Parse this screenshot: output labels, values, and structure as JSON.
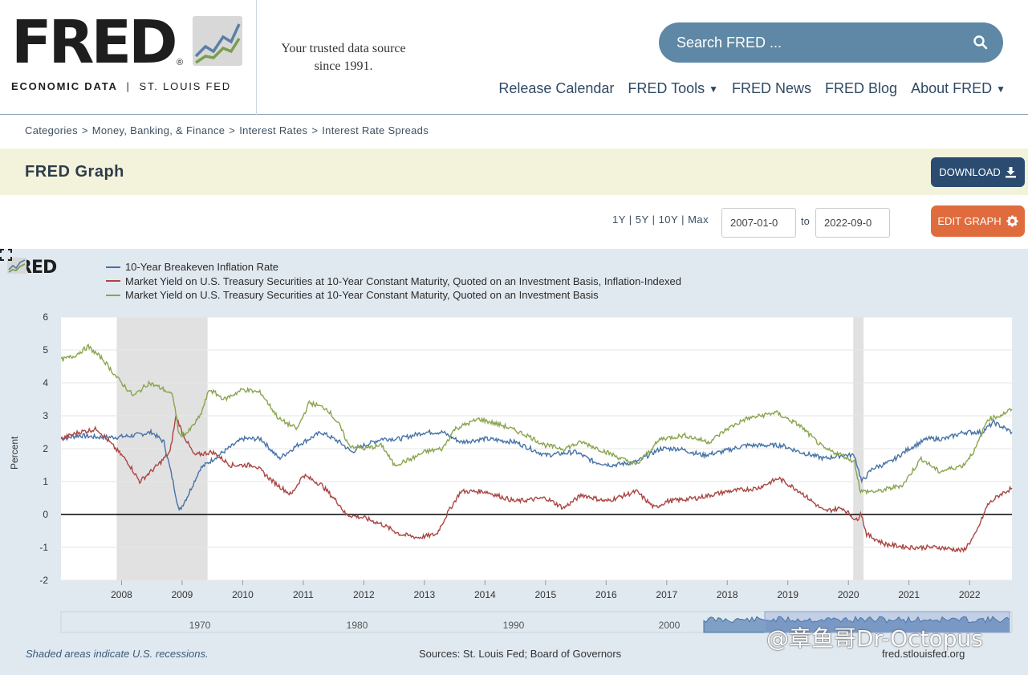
{
  "header": {
    "logo_text": "FRED",
    "logo_sub_bold": "ECONOMIC DATA",
    "logo_sub_sep": "|",
    "logo_sub_rest": "ST. LOUIS FED",
    "tagline_line1": "Your trusted data source",
    "tagline_line2": "since 1991.",
    "search_placeholder": "Search FRED ...",
    "nav": [
      {
        "label": "Release Calendar",
        "dropdown": false
      },
      {
        "label": "FRED Tools",
        "dropdown": true
      },
      {
        "label": "FRED News",
        "dropdown": false
      },
      {
        "label": "FRED Blog",
        "dropdown": false
      },
      {
        "label": "About FRED",
        "dropdown": true
      }
    ]
  },
  "breadcrumb": [
    "Categories",
    "Money, Banking, & Finance",
    "Interest Rates",
    "Interest Rate Spreads"
  ],
  "titlebar": {
    "title": "FRED Graph",
    "download_label": "DOWNLOAD"
  },
  "controls": {
    "ranges": [
      "1Y",
      "5Y",
      "10Y",
      "Max"
    ],
    "start_date": "2007-01-0",
    "to_label": "to",
    "end_date": "2022-09-0",
    "edit_label": "EDIT GRAPH"
  },
  "graph": {
    "logo_text": "FRED",
    "footnote": "Shaded areas indicate U.S. recessions.",
    "sources": "Sources: St. Louis Fed; Board of Governors",
    "site": "fred.stlouisfed.org",
    "watermark": "@章鱼哥Dr-Octopus",
    "colors": {
      "blue": "#4572a7",
      "red": "#aa4643",
      "green": "#89a54e",
      "recession": "#e1e1e1"
    }
  },
  "chart_data": {
    "type": "line",
    "title": "",
    "ylabel": "Percent",
    "xlabel": "",
    "ylim": [
      -2,
      6
    ],
    "xlim": [
      2007.0,
      2022.7
    ],
    "yticks": [
      -2,
      -1,
      0,
      1,
      2,
      3,
      4,
      5,
      6
    ],
    "xticks": [
      2008,
      2009,
      2010,
      2011,
      2012,
      2013,
      2014,
      2015,
      2016,
      2017,
      2018,
      2019,
      2020,
      2021,
      2022
    ],
    "recessions": [
      [
        2007.92,
        2009.42
      ],
      [
        2020.08,
        2020.25
      ]
    ],
    "zero_line": true,
    "grid": true,
    "series": [
      {
        "name": "10-Year Breakeven Inflation Rate",
        "color": "#4572a7",
        "x": [
          2007.0,
          2007.3,
          2007.6,
          2007.9,
          2008.2,
          2008.5,
          2008.7,
          2008.85,
          2008.95,
          2009.1,
          2009.3,
          2009.6,
          2010.0,
          2010.3,
          2010.6,
          2010.9,
          2011.3,
          2011.6,
          2011.8,
          2012.0,
          2012.3,
          2012.6,
          2013.0,
          2013.3,
          2013.6,
          2014.0,
          2014.5,
          2015.0,
          2015.5,
          2015.8,
          2016.1,
          2016.5,
          2016.9,
          2017.2,
          2017.6,
          2017.9,
          2018.3,
          2018.6,
          2018.9,
          2019.2,
          2019.6,
          2019.9,
          2020.1,
          2020.22,
          2020.4,
          2020.7,
          2021.0,
          2021.3,
          2021.6,
          2021.9,
          2022.2,
          2022.4,
          2022.7
        ],
        "y": [
          2.3,
          2.4,
          2.35,
          2.35,
          2.4,
          2.5,
          2.2,
          1.0,
          0.1,
          0.6,
          1.4,
          1.8,
          2.3,
          2.3,
          1.7,
          2.1,
          2.5,
          2.2,
          1.9,
          2.1,
          2.3,
          2.3,
          2.5,
          2.5,
          2.2,
          2.3,
          2.2,
          1.8,
          1.9,
          1.6,
          1.5,
          1.6,
          2.0,
          2.0,
          1.8,
          1.9,
          2.1,
          2.1,
          2.1,
          1.9,
          1.7,
          1.8,
          1.8,
          1.0,
          1.4,
          1.6,
          2.0,
          2.3,
          2.3,
          2.5,
          2.5,
          2.8,
          2.5
        ]
      },
      {
        "name": "Market Yield on U.S. Treasury Securities at 10-Year Constant Maturity, Quoted on an Investment Basis, Inflation-Indexed",
        "color": "#aa4643",
        "x": [
          2007.0,
          2007.3,
          2007.6,
          2007.9,
          2008.1,
          2008.3,
          2008.6,
          2008.8,
          2008.9,
          2009.0,
          2009.2,
          2009.5,
          2009.8,
          2010.2,
          2010.5,
          2010.8,
          2011.0,
          2011.3,
          2011.6,
          2011.7,
          2012.0,
          2012.3,
          2012.6,
          2012.9,
          2013.2,
          2013.4,
          2013.6,
          2014.0,
          2014.5,
          2015.0,
          2015.3,
          2015.6,
          2016.0,
          2016.5,
          2016.8,
          2017.0,
          2017.5,
          2018.0,
          2018.5,
          2018.85,
          2019.2,
          2019.6,
          2019.9,
          2020.15,
          2020.2,
          2020.3,
          2020.6,
          2021.0,
          2021.5,
          2021.9,
          2022.1,
          2022.3,
          2022.5,
          2022.7
        ],
        "y": [
          2.3,
          2.5,
          2.6,
          2.0,
          1.6,
          1.0,
          1.5,
          1.9,
          3.0,
          2.5,
          1.8,
          1.9,
          1.5,
          1.5,
          1.0,
          0.6,
          1.2,
          0.9,
          0.3,
          0.0,
          -0.1,
          -0.3,
          -0.6,
          -0.7,
          -0.6,
          0.1,
          0.7,
          0.7,
          0.4,
          0.5,
          0.2,
          0.6,
          0.4,
          0.7,
          0.2,
          0.4,
          0.5,
          0.7,
          0.8,
          1.1,
          0.7,
          0.1,
          0.2,
          -0.2,
          0.1,
          -0.6,
          -0.9,
          -1.0,
          -1.0,
          -1.1,
          -0.6,
          0.3,
          0.6,
          0.8
        ]
      },
      {
        "name": "Market Yield on U.S. Treasury Securities at 10-Year Constant Maturity, Quoted on an Investment Basis",
        "color": "#89a54e",
        "x": [
          2007.0,
          2007.2,
          2007.45,
          2007.7,
          2007.95,
          2008.2,
          2008.45,
          2008.7,
          2008.85,
          2008.95,
          2009.1,
          2009.3,
          2009.45,
          2009.7,
          2010.0,
          2010.3,
          2010.6,
          2010.9,
          2011.1,
          2011.4,
          2011.6,
          2011.75,
          2012.0,
          2012.3,
          2012.5,
          2012.8,
          2013.0,
          2013.3,
          2013.5,
          2013.9,
          2014.3,
          2014.7,
          2015.0,
          2015.3,
          2015.6,
          2016.0,
          2016.5,
          2016.9,
          2017.3,
          2017.7,
          2018.0,
          2018.3,
          2018.8,
          2019.2,
          2019.6,
          2019.9,
          2020.1,
          2020.2,
          2020.5,
          2020.9,
          2021.2,
          2021.5,
          2021.9,
          2022.1,
          2022.3,
          2022.5,
          2022.7
        ],
        "y": [
          4.7,
          4.8,
          5.1,
          4.7,
          4.1,
          3.6,
          4.0,
          3.8,
          3.6,
          2.4,
          2.5,
          3.0,
          3.8,
          3.5,
          3.8,
          3.7,
          2.9,
          2.6,
          3.4,
          3.2,
          2.7,
          2.1,
          2.0,
          2.1,
          1.5,
          1.7,
          1.9,
          2.0,
          2.6,
          2.9,
          2.7,
          2.4,
          2.1,
          2.0,
          2.2,
          1.9,
          1.5,
          2.3,
          2.4,
          2.2,
          2.6,
          2.9,
          3.1,
          2.7,
          2.0,
          1.8,
          1.6,
          0.7,
          0.7,
          0.9,
          1.7,
          1.3,
          1.5,
          2.0,
          2.9,
          3.0,
          3.2
        ]
      }
    ]
  }
}
